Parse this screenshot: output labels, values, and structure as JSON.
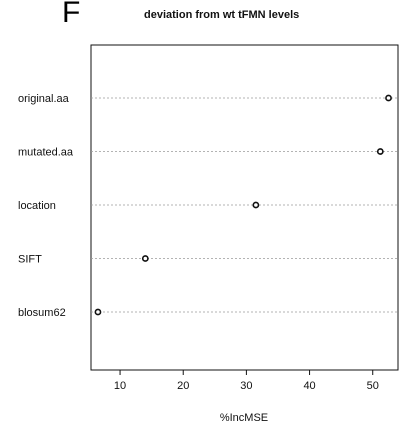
{
  "panel_label": "F",
  "chart_data": {
    "type": "scatter",
    "subtype": "dotchart",
    "title": "deviation from wt tFMN levels",
    "xlabel": "%IncMSE",
    "ylabel": "",
    "categories": [
      "original.aa",
      "mutated.aa",
      "location",
      "SIFT",
      "blosum62"
    ],
    "values": [
      52.5,
      51.2,
      31.5,
      14.0,
      6.5
    ],
    "xlim": [
      5.4,
      54.0
    ],
    "xticks": [
      10,
      20,
      30,
      40,
      50
    ],
    "grid": "horizontal dotted lines per category",
    "colors": {
      "marker_stroke": "#111111",
      "marker_fill": "#ffffff",
      "gridline": "#9a9a9a",
      "frame": "#111111"
    }
  }
}
